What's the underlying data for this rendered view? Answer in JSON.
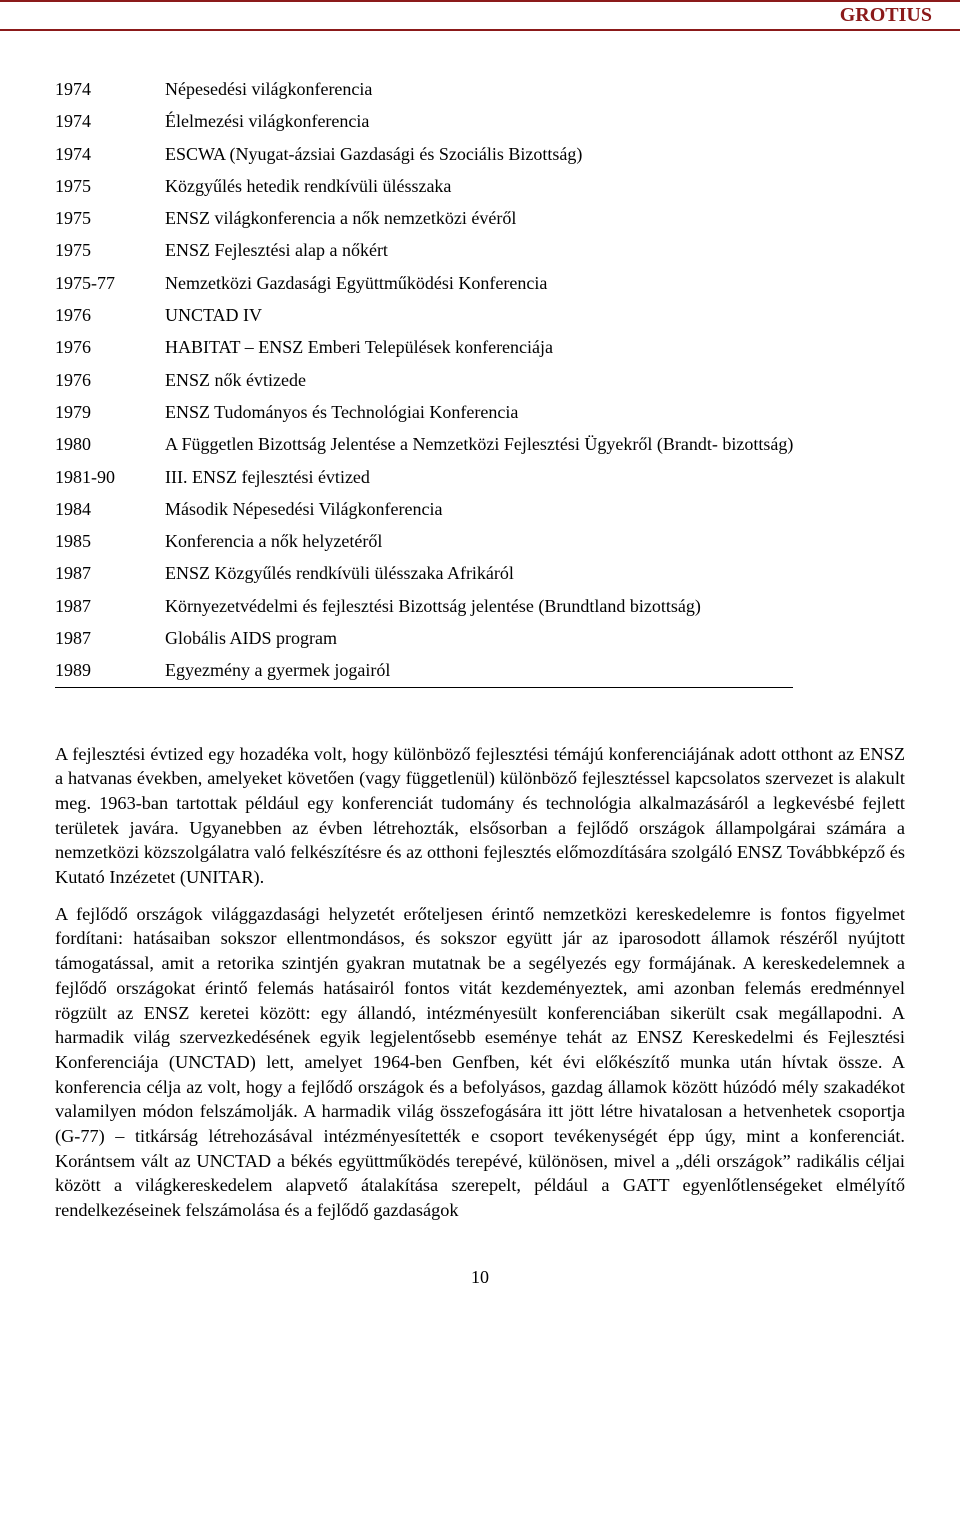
{
  "header": {
    "label": "GROTIUS"
  },
  "timeline": [
    {
      "year": "1974",
      "text": "Népesedési világkonferencia"
    },
    {
      "year": "1974",
      "text": "Élelmezési világkonferencia"
    },
    {
      "year": "1974",
      "text": "ESCWA (Nyugat-ázsiai Gazdasági és Szociális Bizottság)"
    },
    {
      "year": "1975",
      "text": "Közgyűlés hetedik rendkívüli ülésszaka"
    },
    {
      "year": "1975",
      "text": "ENSZ világkonferencia a nők nemzetközi évéről"
    },
    {
      "year": "1975",
      "text": "ENSZ Fejlesztési alap a nőkért"
    },
    {
      "year": "1975-77",
      "text": "Nemzetközi Gazdasági Együttműködési Konferencia"
    },
    {
      "year": "1976",
      "text": "UNCTAD IV"
    },
    {
      "year": "1976",
      "text": "HABITAT – ENSZ Emberi Települések konferenciája"
    },
    {
      "year": "1976",
      "text": "ENSZ nők évtizede"
    },
    {
      "year": "1979",
      "text": "ENSZ Tudományos és Technológiai Konferencia"
    },
    {
      "year": "1980",
      "text": "A Független Bizottság Jelentése a Nemzetközi Fejlesztési Ügyekről (Brandt- bizottság)"
    },
    {
      "year": "1981-90",
      "text": "III. ENSZ fejlesztési évtized"
    },
    {
      "year": "1984",
      "text": "Második Népesedési Világkonferencia"
    },
    {
      "year": "1985",
      "text": "Konferencia a nők helyzetéről"
    },
    {
      "year": "1987",
      "text": "ENSZ Közgyűlés rendkívüli ülésszaka Afrikáról"
    },
    {
      "year": "1987",
      "text": "Környezetvédelmi és fejlesztési Bizottság jelentése (Brundtland bizottság)"
    },
    {
      "year": "1987",
      "text": "Globális AIDS program"
    },
    {
      "year": "1989",
      "text": "Egyezmény a gyermek jogairól"
    }
  ],
  "paragraphs": [
    "A fejlesztési évtized egy hozadéka volt, hogy különböző fejlesztési témájú konferenciájának adott otthont az ENSZ a hatvanas években, amelyeket követően (vagy függetlenül) különböző fejlesztéssel kapcsolatos szervezet is alakult meg. 1963-ban tartottak például egy konferenciát tudomány és technológia alkalmazásáról a legkevésbé fejlett területek javára. Ugyanebben az évben létrehozták, elsősorban a fejlődő országok állampolgárai számára a nemzetközi közszolgálatra való felkészítésre és az otthoni fejlesztés előmozdítására szolgáló ENSZ Továbbképző és Kutató Inzézetet (UNITAR).",
    "A fejlődő országok világgazdasági helyzetét erőteljesen érintő nemzetközi kereskedelemre is fontos figyelmet fordítani: hatásaiban sokszor ellentmondásos, és sokszor együtt jár az iparosodott államok részéről nyújtott támogatással, amit a retorika szintjén gyakran mutatnak be a segélyezés egy formájának. A kereskedelemnek a fejlődő országokat érintő felemás hatásairól fontos vitát kezdeményeztek, ami azonban felemás eredménnyel rögzült az ENSZ keretei között: egy állandó, intézményesült konferenciában sikerült csak megállapodni. A harmadik világ szervezkedésének egyik legjelentősebb eseménye tehát az ENSZ Kereskedelmi és Fejlesztési Konferenciája (UNCTAD) lett, amelyet 1964-ben Genfben, két évi előkészítő munka után hívtak össze. A konferencia célja az volt, hogy a fejlődő országok és a befolyásos, gazdag államok között húzódó mély szakadékot valamilyen módon felszámolják. A harmadik világ összefogására itt jött létre hivatalosan a hetvenhetek csoportja (G-77) – titkárság létrehozásával intézményesítették e csoport tevékenységét épp úgy, mint a konferenciát. Korántsem vált az UNCTAD a békés együttműködés terepévé, különösen, mivel a „déli országok” radikális céljai között a világkereskedelem alapvető átalakítása szerepelt, például a GATT egyenlőtlenségeket elmélyítő rendelkezéseinek felszámolása és a fejlődő gazdaságok"
  ],
  "pageNumber": "10",
  "colors": {
    "accent": "#8b1a1a",
    "text": "#000000",
    "background": "#ffffff"
  },
  "fonts": {
    "body_family": "Times New Roman, serif",
    "body_size_pt": 14,
    "header_size_pt": 15,
    "header_weight": "bold"
  }
}
